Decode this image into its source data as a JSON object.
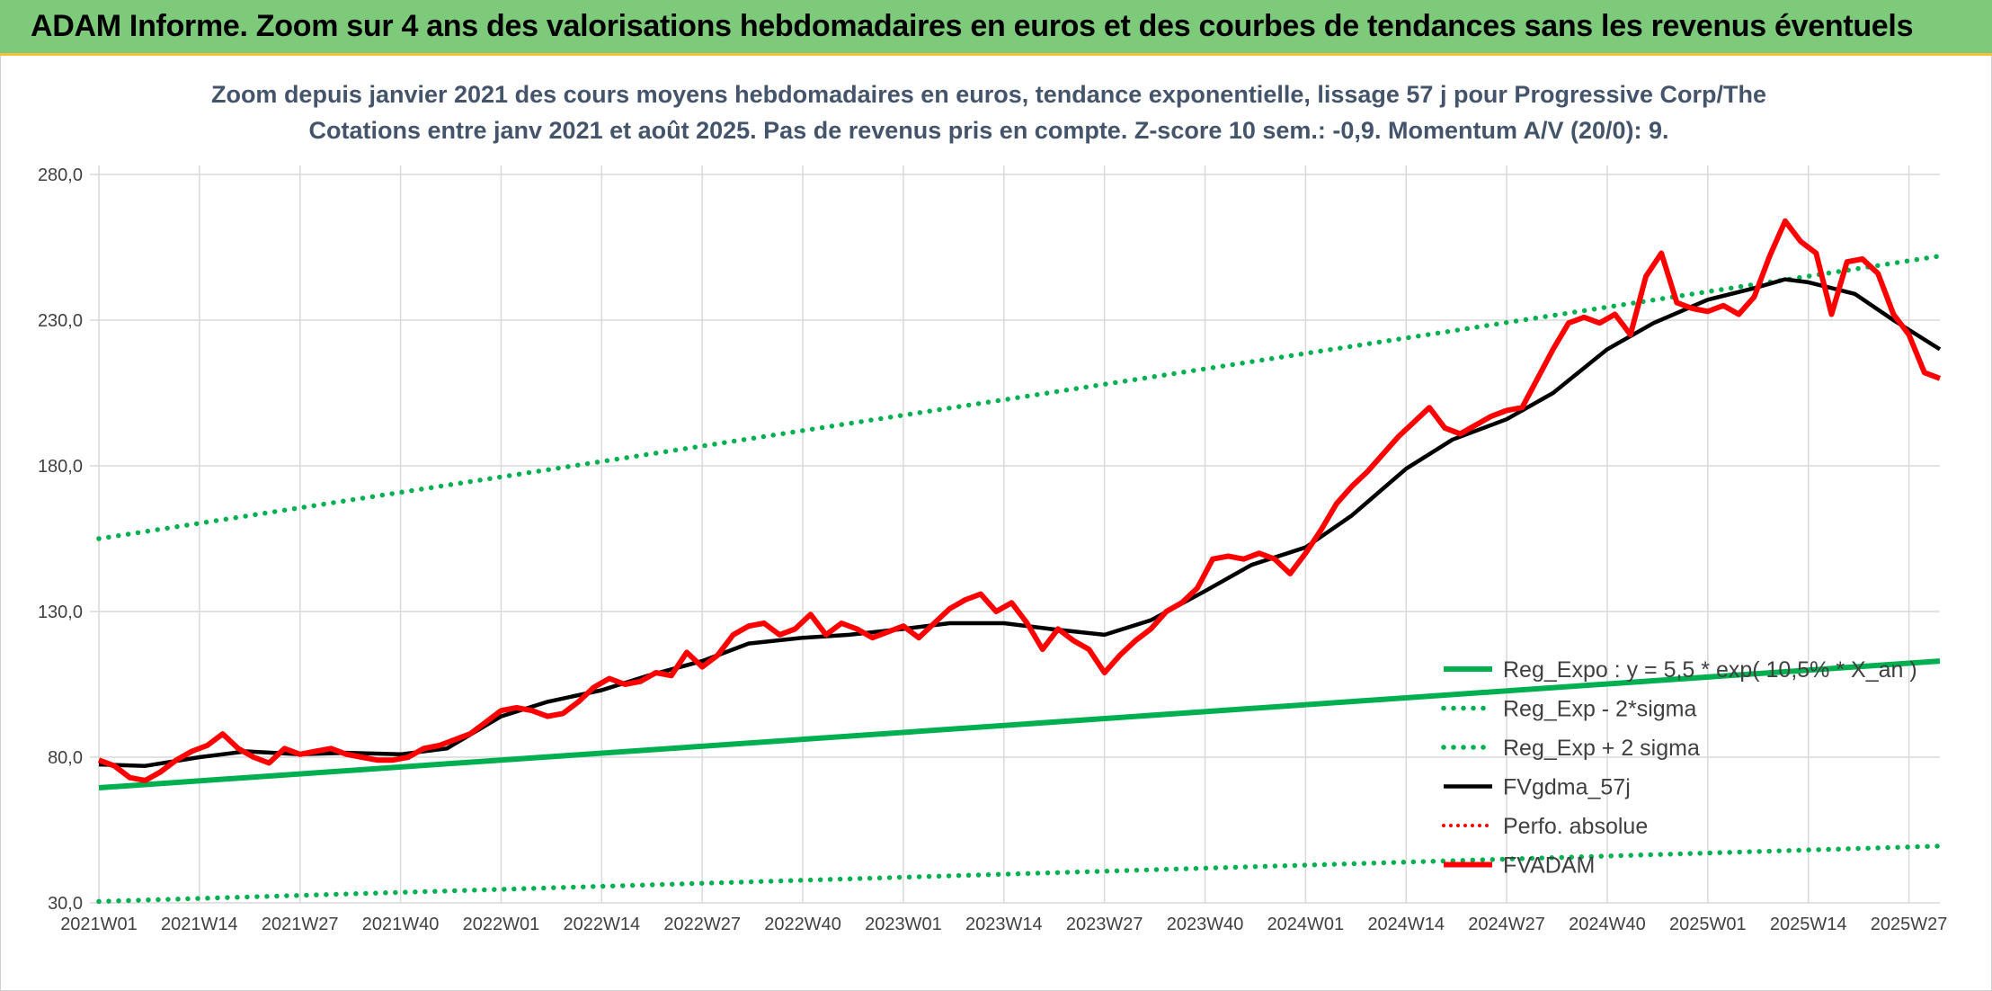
{
  "header": {
    "title": "ADAM Informe. Zoom sur 4 ans des valorisations hebdomadaires en euros et des courbes de tendances sans les revenus éventuels"
  },
  "chart_data": {
    "type": "line",
    "title_line1": "Zoom depuis janvier 2021 des cours moyens hebdomadaires en euros, tendance exponentielle, lissage 57 j pour Progressive Corp/The",
    "title_line2": "Cotations entre janv 2021 et août 2025. Pas de revenus pris en compte. Z-score 10 sem.: -0,9. Momentum A/V (20/0): 9.",
    "ylim": [
      30,
      280
    ],
    "yticks": [
      "280,0",
      "230,0",
      "180,0",
      "130,0",
      "80,0",
      "30,0"
    ],
    "ytick_values": [
      280,
      230,
      180,
      130,
      80,
      30
    ],
    "xticks": [
      "2021W01",
      "2021W14",
      "2021W27",
      "2021W40",
      "2022W01",
      "2022W14",
      "2022W27",
      "2022W40",
      "2023W01",
      "2023W14",
      "2023W27",
      "2023W40",
      "2024W01",
      "2024W14",
      "2024W27",
      "2024W40",
      "2025W01",
      "2025W14",
      "2025W27"
    ],
    "grid": true,
    "legend_position": "bottom-right",
    "colors": {
      "green": "#00b050",
      "black": "#000000",
      "red": "#ff0000"
    },
    "series": [
      {
        "name": "Reg_Expo : y = 5,5 * exp( 10,5% * X_an )",
        "style": "solid-green",
        "points": [
          [
            "2021W01",
            69.5
          ],
          [
            "2025W31",
            113
          ]
        ]
      },
      {
        "name": "Reg_Exp - 2*sigma",
        "style": "dotted-green",
        "points": [
          [
            "2021W01",
            30.5
          ],
          [
            "2025W31",
            49.5
          ]
        ]
      },
      {
        "name": "Reg_Exp + 2 sigma",
        "style": "dotted-green",
        "points": [
          [
            "2021W01",
            155
          ],
          [
            "2025W31",
            252
          ]
        ]
      },
      {
        "name": "FVgdma_57j",
        "style": "solid-black",
        "points": [
          [
            "2021W01",
            77.5
          ],
          [
            "2021W07",
            77
          ],
          [
            "2021W14",
            80
          ],
          [
            "2021W20",
            82
          ],
          [
            "2021W27",
            81
          ],
          [
            "2021W33",
            81.5
          ],
          [
            "2021W40",
            81
          ],
          [
            "2021W46",
            83
          ],
          [
            "2022W01",
            94
          ],
          [
            "2022W07",
            99
          ],
          [
            "2022W14",
            103
          ],
          [
            "2022W20",
            108
          ],
          [
            "2022W27",
            113
          ],
          [
            "2022W33",
            119
          ],
          [
            "2022W40",
            121
          ],
          [
            "2022W46",
            122
          ],
          [
            "2023W01",
            124
          ],
          [
            "2023W07",
            126
          ],
          [
            "2023W14",
            126
          ],
          [
            "2023W20",
            124
          ],
          [
            "2023W27",
            122
          ],
          [
            "2023W33",
            127
          ],
          [
            "2023W40",
            137
          ],
          [
            "2023W46",
            146
          ],
          [
            "2024W01",
            152
          ],
          [
            "2024W07",
            163
          ],
          [
            "2024W14",
            179
          ],
          [
            "2024W20",
            189
          ],
          [
            "2024W27",
            196
          ],
          [
            "2024W33",
            205
          ],
          [
            "2024W40",
            220
          ],
          [
            "2024W46",
            229
          ],
          [
            "2025W01",
            237
          ],
          [
            "2025W07",
            241
          ],
          [
            "2025W11",
            244
          ],
          [
            "2025W14",
            243
          ],
          [
            "2025W20",
            239
          ],
          [
            "2025W25",
            230
          ],
          [
            "2025W31",
            220
          ]
        ]
      },
      {
        "name": "Perfo. absolue",
        "style": "dotted-red",
        "points": []
      },
      {
        "name": "FVADAM",
        "style": "solid-red-thick",
        "points": [
          [
            "2021W01",
            79
          ],
          [
            "2021W03",
            77
          ],
          [
            "2021W05",
            73
          ],
          [
            "2021W07",
            72
          ],
          [
            "2021W09",
            75
          ],
          [
            "2021W11",
            79
          ],
          [
            "2021W13",
            82
          ],
          [
            "2021W15",
            84
          ],
          [
            "2021W17",
            88
          ],
          [
            "2021W19",
            83
          ],
          [
            "2021W21",
            80
          ],
          [
            "2021W23",
            78
          ],
          [
            "2021W25",
            83
          ],
          [
            "2021W27",
            81
          ],
          [
            "2021W29",
            82
          ],
          [
            "2021W31",
            83
          ],
          [
            "2021W33",
            81
          ],
          [
            "2021W35",
            80
          ],
          [
            "2021W37",
            79
          ],
          [
            "2021W39",
            79
          ],
          [
            "2021W41",
            80
          ],
          [
            "2021W43",
            83
          ],
          [
            "2021W45",
            84
          ],
          [
            "2021W47",
            86
          ],
          [
            "2021W49",
            88
          ],
          [
            "2021W51",
            92
          ],
          [
            "2022W01",
            96
          ],
          [
            "2022W03",
            97
          ],
          [
            "2022W05",
            96
          ],
          [
            "2022W07",
            94
          ],
          [
            "2022W09",
            95
          ],
          [
            "2022W11",
            99
          ],
          [
            "2022W13",
            104
          ],
          [
            "2022W15",
            107
          ],
          [
            "2022W17",
            105
          ],
          [
            "2022W19",
            106
          ],
          [
            "2022W21",
            109
          ],
          [
            "2022W23",
            108
          ],
          [
            "2022W25",
            116
          ],
          [
            "2022W27",
            111
          ],
          [
            "2022W29",
            115
          ],
          [
            "2022W31",
            122
          ],
          [
            "2022W33",
            125
          ],
          [
            "2022W35",
            126
          ],
          [
            "2022W37",
            122
          ],
          [
            "2022W39",
            124
          ],
          [
            "2022W41",
            129
          ],
          [
            "2022W43",
            122
          ],
          [
            "2022W45",
            126
          ],
          [
            "2022W47",
            124
          ],
          [
            "2022W49",
            121
          ],
          [
            "2022W51",
            123
          ],
          [
            "2023W01",
            125
          ],
          [
            "2023W03",
            121
          ],
          [
            "2023W05",
            126
          ],
          [
            "2023W07",
            131
          ],
          [
            "2023W09",
            134
          ],
          [
            "2023W11",
            136
          ],
          [
            "2023W13",
            130
          ],
          [
            "2023W15",
            133
          ],
          [
            "2023W17",
            126
          ],
          [
            "2023W19",
            117
          ],
          [
            "2023W21",
            124
          ],
          [
            "2023W23",
            120
          ],
          [
            "2023W25",
            117
          ],
          [
            "2023W27",
            109
          ],
          [
            "2023W29",
            115
          ],
          [
            "2023W31",
            120
          ],
          [
            "2023W33",
            124
          ],
          [
            "2023W35",
            130
          ],
          [
            "2023W37",
            133
          ],
          [
            "2023W39",
            138
          ],
          [
            "2023W41",
            148
          ],
          [
            "2023W43",
            149
          ],
          [
            "2023W45",
            148
          ],
          [
            "2023W47",
            150
          ],
          [
            "2023W49",
            148
          ],
          [
            "2023W51",
            143
          ],
          [
            "2024W01",
            150
          ],
          [
            "2024W03",
            158
          ],
          [
            "2024W05",
            167
          ],
          [
            "2024W07",
            173
          ],
          [
            "2024W09",
            178
          ],
          [
            "2024W11",
            184
          ],
          [
            "2024W13",
            190
          ],
          [
            "2024W15",
            195
          ],
          [
            "2024W17",
            200
          ],
          [
            "2024W19",
            193
          ],
          [
            "2024W21",
            191
          ],
          [
            "2024W23",
            194
          ],
          [
            "2024W25",
            197
          ],
          [
            "2024W27",
            199
          ],
          [
            "2024W29",
            200
          ],
          [
            "2024W31",
            210
          ],
          [
            "2024W33",
            220
          ],
          [
            "2024W35",
            229
          ],
          [
            "2024W37",
            231
          ],
          [
            "2024W39",
            229
          ],
          [
            "2024W41",
            232
          ],
          [
            "2024W43",
            225
          ],
          [
            "2024W45",
            245
          ],
          [
            "2024W47",
            253
          ],
          [
            "2024W49",
            236
          ],
          [
            "2024W51",
            234
          ],
          [
            "2025W01",
            233
          ],
          [
            "2025W03",
            235
          ],
          [
            "2025W05",
            232
          ],
          [
            "2025W07",
            238
          ],
          [
            "2025W09",
            252
          ],
          [
            "2025W11",
            264
          ],
          [
            "2025W13",
            257
          ],
          [
            "2025W15",
            253
          ],
          [
            "2025W17",
            232
          ],
          [
            "2025W19",
            250
          ],
          [
            "2025W21",
            251
          ],
          [
            "2025W23",
            246
          ],
          [
            "2025W25",
            232
          ],
          [
            "2025W27",
            225
          ],
          [
            "2025W29",
            212
          ],
          [
            "2025W31",
            210
          ]
        ]
      }
    ]
  }
}
